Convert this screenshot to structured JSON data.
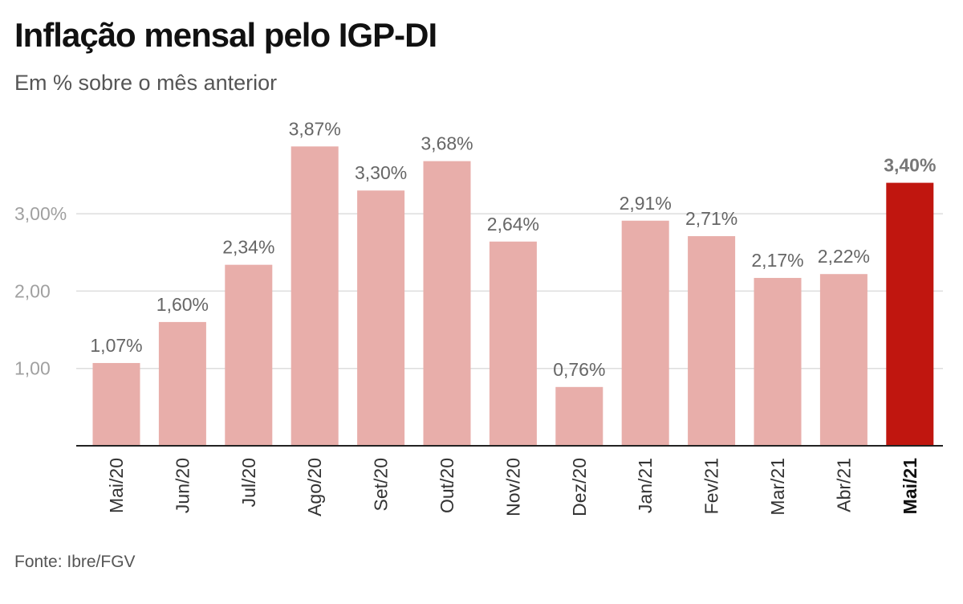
{
  "title": "Inflação mensal pelo IGP-DI",
  "subtitle": "Em % sobre o mês anterior",
  "source": "Fonte: Ibre/FGV",
  "colors": {
    "bar": "#e8aeaa",
    "highlight": "#c0160f",
    "grid": "#dddddd",
    "axis": "#222222"
  },
  "chart_data": {
    "type": "bar",
    "categories": [
      "Mai/20",
      "Jun/20",
      "Jul/20",
      "Ago/20",
      "Set/20",
      "Out/20",
      "Nov/20",
      "Dez/20",
      "Jan/21",
      "Fev/21",
      "Mar/21",
      "Abr/21",
      "Mai/21"
    ],
    "values": [
      1.07,
      1.6,
      2.34,
      3.87,
      3.3,
      3.68,
      2.64,
      0.76,
      2.91,
      2.71,
      2.17,
      2.22,
      3.4
    ],
    "value_labels": [
      "1,07%",
      "1,60%",
      "2,34%",
      "3,87%",
      "3,30%",
      "3,68%",
      "2,64%",
      "0,76%",
      "2,91%",
      "2,71%",
      "2,17%",
      "2,22%",
      "3,40%"
    ],
    "highlight_index": 12,
    "yticks": [
      1,
      2,
      3
    ],
    "ytick_labels": [
      "1,00",
      "2,00",
      "3,00%"
    ],
    "ylim": [
      0,
      4.1
    ],
    "grid": true
  }
}
